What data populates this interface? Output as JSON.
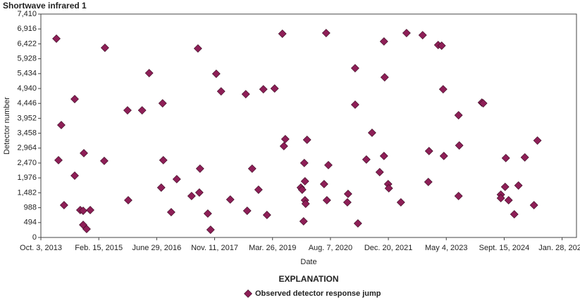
{
  "chart_data": {
    "type": "scatter",
    "title": "Shortwave infrared 1",
    "xlabel": "Date",
    "ylabel": "Detector number",
    "legend_title": "EXPLANATION",
    "xlim": [
      "2013-10-03",
      "2026-06-01"
    ],
    "xticks": [
      {
        "value": "2013-10-03",
        "label": "Oct. 3, 2013"
      },
      {
        "value": "2015-02-15",
        "label": "Feb. 15, 2015"
      },
      {
        "value": "2016-06-29",
        "label": "June 29, 2016"
      },
      {
        "value": "2017-11-11",
        "label": "Nov. 11, 2017"
      },
      {
        "value": "2019-03-26",
        "label": "Mar. 26, 2019"
      },
      {
        "value": "2020-08-07",
        "label": "Aug. 7, 2020"
      },
      {
        "value": "2021-12-20",
        "label": "Dec. 20, 2021"
      },
      {
        "value": "2023-05-04",
        "label": "May 4, 2023"
      },
      {
        "value": "2024-09-15",
        "label": "Sept. 15, 2024"
      },
      {
        "value": "2026-01-28",
        "label": "Jan. 28, 2026"
      }
    ],
    "ylim": [
      0,
      7410
    ],
    "yticks": [
      0,
      494,
      988,
      {
        "value": 1482,
        "label": "1,482"
      },
      {
        "value": 1976,
        "label": "1,976"
      },
      {
        "value": 2470,
        "label": "2,470"
      },
      {
        "value": 2964,
        "label": "2,964"
      },
      {
        "value": 3458,
        "label": "3,458"
      },
      {
        "value": 3952,
        "label": "3,952"
      },
      {
        "value": 4446,
        "label": "4,446"
      },
      {
        "value": 4940,
        "label": "4,940"
      },
      {
        "value": 5434,
        "label": "5,434"
      },
      {
        "value": 5928,
        "label": "5,928"
      },
      {
        "value": 6422,
        "label": "6,422"
      },
      {
        "value": 6916,
        "label": "6,916"
      },
      {
        "value": 7410,
        "label": "7,410"
      }
    ],
    "series": [
      {
        "name": "Observed detector response jump",
        "color": "#8e1f57",
        "x": [
          "2014-02-14",
          "2014-03-28",
          "2014-03-04",
          "2014-04-21",
          "2014-07-22",
          "2014-07-22",
          "2014-09-08",
          "2014-10-09",
          "2014-10-03",
          "2014-10-03",
          "2014-11-02",
          "2014-12-03",
          "2015-04-09",
          "2015-04-03",
          "2015-10-21",
          "2015-10-27",
          "2016-02-24",
          "2016-04-25",
          "2016-08-19",
          "2016-08-25",
          "2016-08-07",
          "2016-11-01",
          "2016-12-19",
          "2017-04-26",
          "2017-06-20",
          "2017-07-08",
          "2017-07-02",
          "2017-09-13",
          "2017-10-07",
          "2017-11-25",
          "2018-01-06",
          "2018-03-26",
          "2018-08-07",
          "2018-08-19",
          "2018-10-01",
          "2018-11-25",
          "2019-01-06",
          "2019-02-06",
          "2019-04-13",
          "2019-06-19",
          "2019-07-14",
          "2019-07-02",
          "2019-11-25",
          "2019-12-07",
          "2019-12-25",
          "2019-12-31",
          "2019-12-31",
          "2020-01-06",
          "2020-01-18",
          "2019-12-19",
          "2020-07-01",
          "2020-07-20",
          "2020-06-13",
          "2020-07-07",
          "2021-01-06",
          "2020-12-31",
          "2021-03-08",
          "2021-03-08",
          "2021-04-01",
          "2021-06-13",
          "2021-08-01",
          "2021-10-06",
          "2021-11-12",
          "2021-11-18",
          "2021-11-12",
          "2021-12-18",
          "2021-12-24",
          "2022-04-07",
          "2022-05-26",
          "2022-10-12",
          "2022-12-06",
          "2022-11-30",
          "2023-02-23",
          "2023-03-25",
          "2023-04-07",
          "2023-04-13",
          "2023-08-18",
          "2023-08-24",
          "2023-08-18",
          "2024-03-06",
          "2024-03-18",
          "2024-08-17",
          "2024-08-17",
          "2024-09-29",
          "2024-09-23",
          "2024-10-23",
          "2024-12-11",
          "2025-01-16",
          "2025-03-12",
          "2025-05-30",
          "2025-06-29"
        ],
        "values": [
          6594,
          3728,
          2563,
          1072,
          4590,
          2050,
          909,
          2796,
          885,
          419,
          280,
          909,
          6291,
          2540,
          4217,
          1235,
          4217,
          5452,
          4450,
          2563,
          1654,
          839,
          1934,
          1375,
          6268,
          2283,
          1491,
          792,
          256,
          5429,
          4846,
          1258,
          4753,
          885,
          2283,
          1584,
          4916,
          746,
          4940,
          6757,
          3262,
          3029,
          1654,
          1584,
          2470,
          1864,
          1235,
          1118,
          3239,
          536,
          6780,
          2400,
          1771,
          1235,
          1445,
          1165,
          5615,
          4404,
          466,
          2586,
          3472,
          2167,
          6501,
          5312,
          2703,
          1771,
          1631,
          1165,
          6780,
          6710,
          2866,
          1841,
          6384,
          6361,
          4916,
          2703,
          4054,
          3052,
          1375,
          4474,
          4450,
          1421,
          1305,
          2633,
          1678,
          1235,
          769,
          1724,
          2656,
          1072,
          3215
        ]
      }
    ]
  }
}
